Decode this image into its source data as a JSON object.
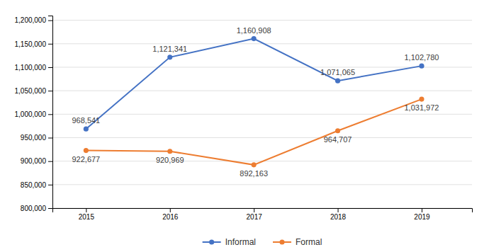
{
  "chart_data": {
    "type": "line",
    "x": [
      2015,
      2016,
      2017,
      2018,
      2019
    ],
    "xlim": [
      2014.6,
      2019.6
    ],
    "xticks": [
      2015,
      2016,
      2017,
      2018,
      2019
    ],
    "ylim": [
      800000,
      1210000
    ],
    "yticks": [
      {
        "value": 800000,
        "label": "800,000"
      },
      {
        "value": 850000,
        "label": "850,000"
      },
      {
        "value": 900000,
        "label": "900,000"
      },
      {
        "value": 950000,
        "label": "950,000"
      },
      {
        "value": 1000000,
        "label": "1,000,000"
      },
      {
        "value": 1050000,
        "label": "1,050,000"
      },
      {
        "value": 1100000,
        "label": "1,100,000"
      },
      {
        "value": 1150000,
        "label": "1,150,000"
      },
      {
        "value": 1200000,
        "label": "1,200,000"
      }
    ],
    "grid": true,
    "legend": "bottom",
    "data_labels": true,
    "series": [
      {
        "name": "Informal",
        "color": "#4472C4",
        "marker": "o",
        "values": [
          968541,
          1121341,
          1160908,
          1071065,
          1102780
        ],
        "value_labels": [
          "968,541",
          "1,121,341",
          "1,160,908",
          "1,071,065",
          "1,102,780"
        ]
      },
      {
        "name": "Formal",
        "color": "#ED7D31",
        "marker": "o",
        "values": [
          922677,
          920969,
          892163,
          964707,
          1031972
        ],
        "value_labels": [
          "922,677",
          "920,969",
          "892,163",
          "964,707",
          "1,031,972"
        ]
      }
    ]
  }
}
